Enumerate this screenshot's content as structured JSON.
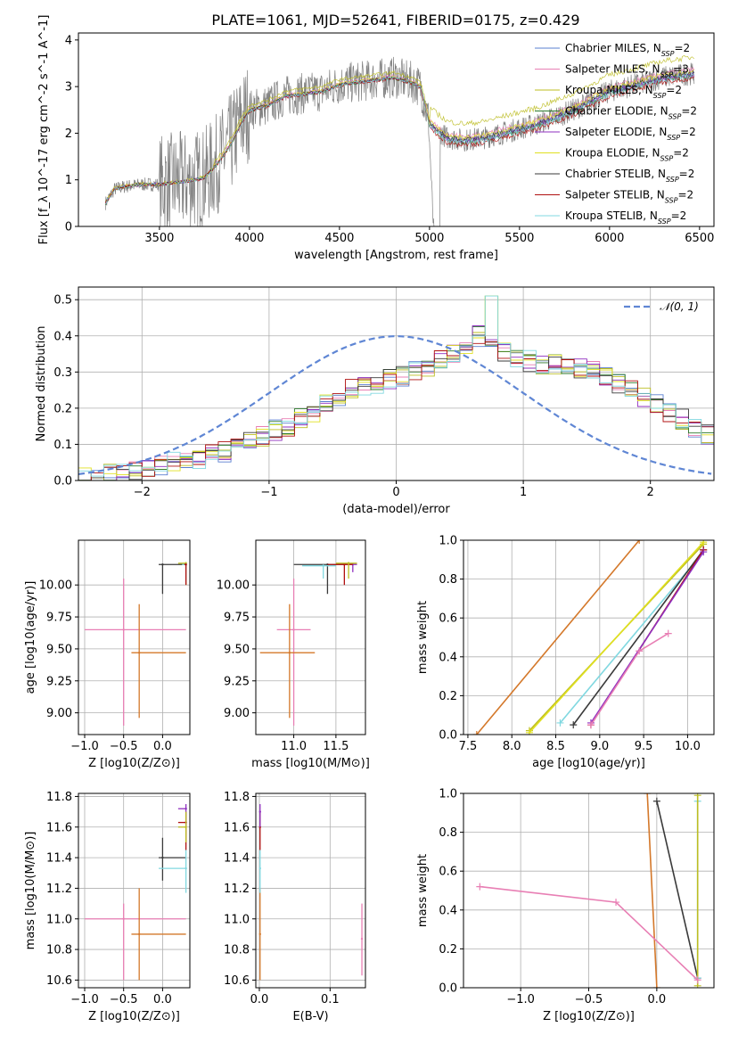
{
  "title": "PLATE=1061, MJD=52641, FIBERID=0175, z=0.429",
  "colors": {
    "Chabrier MILES": "#5a7fd0",
    "Salpeter MILES": "#e87fb4",
    "Kroupa MILES": "#bcbd22",
    "Chabrier ELODIE": "#2c7a2c",
    "Salpeter ELODIE": "#8f2fbf",
    "Kroupa ELODIE": "#e0e020",
    "Chabrier STELIB": "#3a3a3a",
    "Salpeter STELIB": "#b01010",
    "Kroupa STELIB": "#80d8e0",
    "orange": "#d4782a",
    "gaussian": "#5f86d4",
    "data": "#808080"
  },
  "chart_data": [
    {
      "id": "spectrum",
      "type": "line",
      "xlabel": "wavelength [Angstrom, rest frame]",
      "ylabel": "Flux [f_λ 10^-17 erg cm^-2 s^-1 A^-1]",
      "xlim": [
        3050,
        6580
      ],
      "ylim": [
        0,
        4.15
      ],
      "xticks": [
        3500,
        4000,
        4500,
        5000,
        5500,
        6000,
        6500
      ],
      "yticks": [
        0,
        1,
        2,
        3,
        4
      ],
      "legend_position": "top-right",
      "legend": [
        {
          "name": "Chabrier MILES",
          "base": "Chabrier MILES",
          "sub": "SSP",
          "n": "=2"
        },
        {
          "name": "Salpeter MILES",
          "base": "Salpeter MILES",
          "sub": "SSP",
          "n": "=3"
        },
        {
          "name": "Kroupa MILES",
          "base": "Kroupa MILES",
          "sub": "SSP",
          "n": "=2"
        },
        {
          "name": "Chabrier ELODIE",
          "base": "Chabrier ELODIE",
          "sub": "SSP",
          "n": "=2"
        },
        {
          "name": "Salpeter ELODIE",
          "base": "Salpeter ELODIE",
          "sub": "SSP",
          "n": "=2"
        },
        {
          "name": "Kroupa ELODIE",
          "base": "Kroupa ELODIE",
          "sub": "SSP",
          "n": "=2"
        },
        {
          "name": "Chabrier STELIB",
          "base": "Chabrier STELIB",
          "sub": "SSP",
          "n": "=2"
        },
        {
          "name": "Salpeter STELIB",
          "base": "Salpeter STELIB",
          "sub": "SSP",
          "n": "=2"
        },
        {
          "name": "Kroupa STELIB",
          "base": "Kroupa STELIB",
          "sub": "SSP",
          "n": "=2"
        }
      ],
      "model_continuum": {
        "x": [
          3200,
          3250,
          3300,
          3400,
          3500,
          3600,
          3700,
          3750,
          3800,
          3850,
          3900,
          3950,
          4000,
          4100,
          4200,
          4300,
          4400,
          4500,
          4600,
          4700,
          4800,
          4900,
          4950,
          5000,
          5100,
          5200,
          5300,
          5400,
          5500,
          5600,
          5700,
          5800,
          5900,
          6000,
          6100,
          6200,
          6300,
          6400,
          6500
        ],
        "y": [
          0.5,
          0.8,
          0.85,
          0.9,
          0.9,
          0.95,
          1.0,
          1.05,
          1.25,
          1.5,
          1.8,
          2.2,
          2.5,
          2.6,
          2.8,
          2.85,
          2.9,
          3.05,
          3.1,
          3.15,
          3.2,
          3.1,
          3.0,
          2.2,
          1.9,
          1.85,
          1.9,
          2.0,
          2.1,
          2.2,
          2.35,
          2.5,
          2.7,
          2.9,
          3.0,
          3.1,
          3.2,
          3.25,
          3.3
        ]
      },
      "model_offsets": [
        0.0,
        0.08,
        0.35,
        -0.05,
        -0.02,
        0.05,
        0.0,
        -0.1,
        -0.05
      ]
    },
    {
      "id": "residual-hist",
      "type": "bar",
      "xlabel": "(data-model)/error",
      "ylabel": "Normed distribution",
      "xlim": [
        -2.5,
        2.5
      ],
      "ylim": [
        0,
        0.535
      ],
      "xticks": [
        -2,
        -1,
        0,
        1,
        2
      ],
      "yticks": [
        0.0,
        0.1,
        0.2,
        0.3,
        0.4,
        0.5
      ],
      "legend": "𝒩(0, 1)",
      "legend_position": "top-right",
      "bins_start": -2.5,
      "bin_width": 0.1,
      "envelope": [
        0.01,
        0.01,
        0.02,
        0.02,
        0.03,
        0.04,
        0.04,
        0.05,
        0.06,
        0.06,
        0.07,
        0.08,
        0.09,
        0.11,
        0.12,
        0.14,
        0.15,
        0.17,
        0.19,
        0.21,
        0.23,
        0.25,
        0.26,
        0.27,
        0.28,
        0.29,
        0.3,
        0.31,
        0.33,
        0.35,
        0.37,
        0.4,
        0.38,
        0.36,
        0.34,
        0.33,
        0.32,
        0.32,
        0.31,
        0.31,
        0.3,
        0.29,
        0.27,
        0.25,
        0.23,
        0.21,
        0.19,
        0.17,
        0.15,
        0.13
      ],
      "normal": {
        "mean": 0,
        "sigma": 1
      }
    },
    {
      "id": "age-vs-Z",
      "type": "scatter",
      "xlabel": "Z [log10(Z/Z⊙)]",
      "ylabel": "age  [log10(age/yr)]",
      "xlim": [
        -1.08,
        0.35
      ],
      "ylim": [
        8.83,
        10.35
      ],
      "xticks": [
        -1.0,
        -0.5,
        0.0
      ],
      "yticks": [
        9.0,
        9.25,
        9.5,
        9.75,
        10.0
      ],
      "points": [
        {
          "s": "Salpeter MILES",
          "x": -0.5,
          "y": 9.65,
          "xlo": -1.0,
          "xhi": 0.3,
          "ylo": 8.9,
          "yhi": 10.05
        },
        {
          "s": "orange",
          "x": -0.3,
          "y": 9.47,
          "xlo": -0.4,
          "xhi": 0.3,
          "ylo": 8.96,
          "yhi": 9.85
        },
        {
          "s": "Chabrier STELIB",
          "x": 0.0,
          "y": 10.16,
          "xlo": -0.05,
          "xhi": 0.3,
          "ylo": 9.93,
          "yhi": 10.16
        },
        {
          "s": "Kroupa MILES",
          "x": 0.3,
          "y": 10.17,
          "xlo": 0.2,
          "xhi": 0.3,
          "ylo": 10.0,
          "yhi": 10.18
        },
        {
          "s": "Kroupa STELIB",
          "x": 0.3,
          "y": 10.16,
          "xlo": 0.25,
          "xhi": 0.3,
          "ylo": 10.02,
          "yhi": 10.16
        },
        {
          "s": "Salpeter STELIB",
          "x": 0.3,
          "y": 10.16,
          "xlo": 0.28,
          "xhi": 0.3,
          "ylo": 10.0,
          "yhi": 10.16
        }
      ]
    },
    {
      "id": "age-vs-mass",
      "type": "scatter",
      "xlabel": "mass [log10(M/M⊙)]",
      "ylabel": "",
      "xlim": [
        10.55,
        11.85
      ],
      "ylim": [
        8.83,
        10.35
      ],
      "xticks": [
        11.0,
        11.5
      ],
      "yticks": [
        9.0,
        9.25,
        9.5,
        9.75,
        10.0
      ],
      "points": [
        {
          "s": "Salpeter MILES",
          "x": 11.0,
          "y": 9.65,
          "xlo": 10.8,
          "xhi": 11.2,
          "ylo": 8.9,
          "yhi": 10.05
        },
        {
          "s": "orange",
          "x": 10.95,
          "y": 9.47,
          "xlo": 10.6,
          "xhi": 11.25,
          "ylo": 8.96,
          "yhi": 9.85
        },
        {
          "s": "Chabrier STELIB",
          "x": 11.4,
          "y": 10.16,
          "xlo": 11.0,
          "xhi": 11.6,
          "ylo": 9.93,
          "yhi": 10.16
        },
        {
          "s": "Kroupa STELIB",
          "x": 11.35,
          "y": 10.15,
          "xlo": 11.1,
          "xhi": 11.5,
          "ylo": 10.05,
          "yhi": 10.16
        },
        {
          "s": "Salpeter ELODIE",
          "x": 11.7,
          "y": 10.16,
          "xlo": 11.55,
          "xhi": 11.75,
          "ylo": 10.1,
          "yhi": 10.17
        },
        {
          "s": "Salpeter STELIB",
          "x": 11.6,
          "y": 10.16,
          "xlo": 11.4,
          "xhi": 11.7,
          "ylo": 10.0,
          "yhi": 10.16
        },
        {
          "s": "Kroupa MILES",
          "x": 11.65,
          "y": 10.17,
          "xlo": 11.5,
          "xhi": 11.75,
          "ylo": 10.05,
          "yhi": 10.18
        }
      ]
    },
    {
      "id": "weight-vs-age",
      "type": "line",
      "xlabel": "age  [log10(age/yr)]",
      "ylabel": "mass weight",
      "xlim": [
        7.45,
        10.3
      ],
      "ylim": [
        0,
        1
      ],
      "xticks": [
        7.5,
        8.0,
        8.5,
        9.0,
        9.5,
        10.0
      ],
      "yticks": [
        0.0,
        0.2,
        0.4,
        0.6,
        0.8,
        1.0
      ],
      "lines": [
        {
          "s": "orange",
          "x": [
            7.6,
            9.45
          ],
          "y": [
            0.0,
            1.0
          ]
        },
        {
          "s": "Kroupa MILES",
          "x": [
            8.2,
            10.18
          ],
          "y": [
            0.02,
            0.98
          ]
        },
        {
          "s": "Kroupa ELODIE",
          "x": [
            8.2,
            10.18
          ],
          "y": [
            0.01,
            0.99
          ]
        },
        {
          "s": "Kroupa STELIB",
          "x": [
            8.55,
            10.18
          ],
          "y": [
            0.06,
            0.94
          ]
        },
        {
          "s": "Chabrier STELIB",
          "x": [
            8.7,
            10.18
          ],
          "y": [
            0.05,
            0.95
          ]
        },
        {
          "s": "Salpeter STELIB",
          "x": [
            8.9,
            10.18
          ],
          "y": [
            0.05,
            0.95
          ]
        },
        {
          "s": "Salpeter ELODIE",
          "x": [
            8.9,
            10.18
          ],
          "y": [
            0.06,
            0.94
          ]
        },
        {
          "s": "Salpeter MILES",
          "x": [
            8.9,
            9.45,
            9.78
          ],
          "y": [
            0.05,
            0.43,
            0.52
          ]
        }
      ]
    },
    {
      "id": "mass-vs-Z",
      "type": "scatter",
      "xlabel": "Z [log10(Z/Z⊙)]",
      "ylabel": "mass [log10(M/M⊙)]",
      "xlim": [
        -1.08,
        0.35
      ],
      "ylim": [
        10.55,
        11.82
      ],
      "xticks": [
        -1.0,
        -0.5,
        0.0
      ],
      "yticks": [
        10.6,
        10.8,
        11.0,
        11.2,
        11.4,
        11.6,
        11.8
      ],
      "points": [
        {
          "s": "Salpeter MILES",
          "x": -0.5,
          "y": 11.0,
          "xlo": -1.0,
          "xhi": 0.3,
          "ylo": 10.6,
          "yhi": 11.1
        },
        {
          "s": "orange",
          "x": -0.3,
          "y": 10.9,
          "xlo": -0.4,
          "xhi": 0.3,
          "ylo": 10.6,
          "yhi": 11.2
        },
        {
          "s": "Chabrier STELIB",
          "x": 0.0,
          "y": 11.4,
          "xlo": -0.05,
          "xhi": 0.3,
          "ylo": 11.25,
          "yhi": 11.53
        },
        {
          "s": "Kroupa STELIB",
          "x": 0.3,
          "y": 11.33,
          "xlo": -0.05,
          "xhi": 0.3,
          "ylo": 11.17,
          "yhi": 11.45
        },
        {
          "s": "Salpeter STELIB",
          "x": 0.3,
          "y": 11.63,
          "xlo": 0.2,
          "xhi": 0.3,
          "ylo": 11.45,
          "yhi": 11.7
        },
        {
          "s": "Salpeter ELODIE",
          "x": 0.3,
          "y": 11.72,
          "xlo": 0.2,
          "xhi": 0.3,
          "ylo": 11.6,
          "yhi": 11.75
        },
        {
          "s": "Kroupa MILES",
          "x": 0.3,
          "y": 11.6,
          "xlo": 0.2,
          "xhi": 0.3,
          "ylo": 11.5,
          "yhi": 11.7
        }
      ]
    },
    {
      "id": "mass-vs-ebv",
      "type": "scatter",
      "xlabel": "E(B-V)",
      "ylabel": "",
      "xlim": [
        -0.005,
        0.15
      ],
      "ylim": [
        10.55,
        11.82
      ],
      "xticks": [
        0.0,
        0.1
      ],
      "yticks": [
        10.6,
        10.8,
        11.0,
        11.2,
        11.4,
        11.6,
        11.8
      ],
      "points": [
        {
          "s": "Salpeter MILES",
          "x": 0.145,
          "y": 10.87,
          "ylo": 10.63,
          "yhi": 11.1
        },
        {
          "s": "orange",
          "x": 0.001,
          "y": 10.9,
          "ylo": 10.6,
          "yhi": 11.2
        },
        {
          "s": "Kroupa STELIB",
          "x": 0.001,
          "y": 11.33,
          "ylo": 11.17,
          "yhi": 11.45
        },
        {
          "s": "Salpeter STELIB",
          "x": 0.001,
          "y": 11.6,
          "ylo": 11.45,
          "yhi": 11.7
        },
        {
          "s": "Salpeter ELODIE",
          "x": 0.001,
          "y": 11.7,
          "ylo": 11.6,
          "yhi": 11.75
        }
      ]
    },
    {
      "id": "weight-vs-Z",
      "type": "line",
      "xlabel": "Z [log10(Z/Z⊙)]",
      "ylabel": "mass weight",
      "xlim": [
        -1.42,
        0.42
      ],
      "ylim": [
        0,
        1
      ],
      "xticks": [
        -1.0,
        -0.5,
        0.0
      ],
      "yticks": [
        0.0,
        0.2,
        0.4,
        0.6,
        0.8,
        1.0
      ],
      "lines": [
        {
          "s": "orange",
          "x": [
            -0.07,
            0.0
          ],
          "y": [
            1.0,
            0.0
          ]
        },
        {
          "s": "Chabrier STELIB",
          "x": [
            0.0,
            0.3
          ],
          "y": [
            0.96,
            0.05
          ]
        },
        {
          "s": "Kroupa STELIB",
          "x": [
            0.3,
            0.3
          ],
          "y": [
            0.05,
            0.96
          ]
        },
        {
          "s": "Kroupa MILES",
          "x": [
            0.3,
            0.3
          ],
          "y": [
            0.01,
            0.99
          ]
        },
        {
          "s": "Salpeter MILES",
          "x": [
            -1.3,
            -0.3,
            0.3
          ],
          "y": [
            0.52,
            0.44,
            0.04
          ]
        }
      ]
    }
  ]
}
